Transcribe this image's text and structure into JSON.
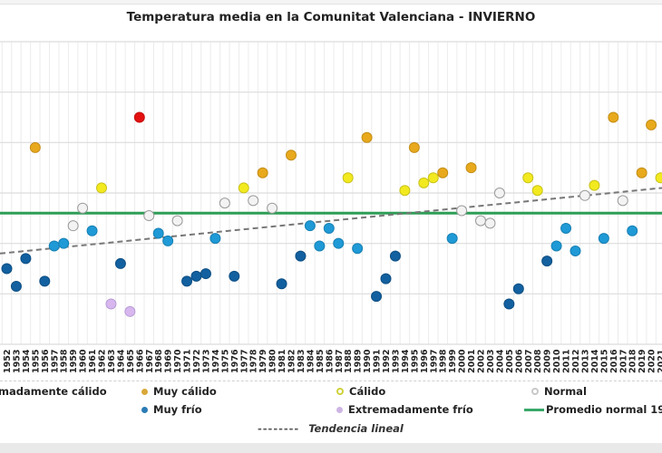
{
  "chart_data": {
    "type": "scatter",
    "title": "Temperatura media en la Comunitat Valenciana - INVIERNO",
    "xlabel": "",
    "ylabel": "",
    "y_tick_labels_visible": false,
    "ylim": [
      7.0,
      13.0
    ],
    "grid": true,
    "legend_position": "bottom",
    "categories_colors": {
      "extremadamente_calido": "#e3100f",
      "muy_calido": "#e8a91c",
      "calido": "#f2ea1f",
      "normal": "#f3f3f3",
      "muy_frio": "#1f9ad6",
      "muy_frio_dark": "#12609f",
      "extremadamente_frio": "#d7b7ee"
    },
    "average_line": {
      "label": "Promedio normal 19",
      "value": 9.6,
      "color": "#2e9e57"
    },
    "trend": {
      "label": "Tendencia lineal",
      "start": 8.8,
      "end": 10.1,
      "color": "#777777"
    },
    "points": [
      {
        "year": "1952",
        "value": 8.5,
        "cat": "muy_frio_dark"
      },
      {
        "year": "1953",
        "value": 8.15,
        "cat": "muy_frio_dark"
      },
      {
        "year": "1954",
        "value": 8.7,
        "cat": "muy_frio_dark"
      },
      {
        "year": "1955",
        "value": 10.9,
        "cat": "muy_calido"
      },
      {
        "year": "1956",
        "value": 8.25,
        "cat": "muy_frio_dark"
      },
      {
        "year": "1957",
        "value": 8.95,
        "cat": "muy_frio"
      },
      {
        "year": "1958",
        "value": 9.0,
        "cat": "muy_frio"
      },
      {
        "year": "1959",
        "value": 9.35,
        "cat": "normal"
      },
      {
        "year": "1960",
        "value": 9.7,
        "cat": "normal"
      },
      {
        "year": "1961",
        "value": 9.25,
        "cat": "muy_frio"
      },
      {
        "year": "1962",
        "value": 10.1,
        "cat": "calido"
      },
      {
        "year": "1963",
        "value": 7.8,
        "cat": "extremadamente_frio"
      },
      {
        "year": "1964",
        "value": 8.6,
        "cat": "muy_frio_dark"
      },
      {
        "year": "1965",
        "value": 7.65,
        "cat": "extremadamente_frio"
      },
      {
        "year": "1966",
        "value": 11.5,
        "cat": "extremadamente_calido"
      },
      {
        "year": "1967",
        "value": 9.55,
        "cat": "normal"
      },
      {
        "year": "1968",
        "value": 9.2,
        "cat": "muy_frio"
      },
      {
        "year": "1969",
        "value": 9.05,
        "cat": "muy_frio"
      },
      {
        "year": "1970",
        "value": 9.45,
        "cat": "normal"
      },
      {
        "year": "1971",
        "value": 8.25,
        "cat": "muy_frio_dark"
      },
      {
        "year": "1972",
        "value": 8.35,
        "cat": "muy_frio_dark"
      },
      {
        "year": "1973",
        "value": 8.4,
        "cat": "muy_frio_dark"
      },
      {
        "year": "1974",
        "value": 9.1,
        "cat": "muy_frio"
      },
      {
        "year": "1975",
        "value": 9.8,
        "cat": "normal"
      },
      {
        "year": "1976",
        "value": 8.35,
        "cat": "muy_frio_dark"
      },
      {
        "year": "1977",
        "value": 10.1,
        "cat": "calido"
      },
      {
        "year": "1978",
        "value": 9.85,
        "cat": "normal"
      },
      {
        "year": "1979",
        "value": 10.4,
        "cat": "muy_calido"
      },
      {
        "year": "1980",
        "value": 9.7,
        "cat": "normal"
      },
      {
        "year": "1981",
        "value": 8.2,
        "cat": "muy_frio_dark"
      },
      {
        "year": "1982",
        "value": 10.75,
        "cat": "muy_calido"
      },
      {
        "year": "1983",
        "value": 8.75,
        "cat": "muy_frio_dark"
      },
      {
        "year": "1984",
        "value": 9.35,
        "cat": "muy_frio"
      },
      {
        "year": "1985",
        "value": 8.95,
        "cat": "muy_frio"
      },
      {
        "year": "1986",
        "value": 9.3,
        "cat": "muy_frio"
      },
      {
        "year": "1987",
        "value": 9.0,
        "cat": "muy_frio"
      },
      {
        "year": "1988",
        "value": 10.3,
        "cat": "calido"
      },
      {
        "year": "1989",
        "value": 8.9,
        "cat": "muy_frio"
      },
      {
        "year": "1990",
        "value": 11.1,
        "cat": "muy_calido"
      },
      {
        "year": "1991",
        "value": 7.95,
        "cat": "muy_frio_dark"
      },
      {
        "year": "1992",
        "value": 8.3,
        "cat": "muy_frio_dark"
      },
      {
        "year": "1993",
        "value": 8.75,
        "cat": "muy_frio_dark"
      },
      {
        "year": "1994",
        "value": 10.05,
        "cat": "calido"
      },
      {
        "year": "1995",
        "value": 10.9,
        "cat": "muy_calido"
      },
      {
        "year": "1996",
        "value": 10.2,
        "cat": "calido"
      },
      {
        "year": "1997",
        "value": 10.3,
        "cat": "calido"
      },
      {
        "year": "1998",
        "value": 10.4,
        "cat": "muy_calido"
      },
      {
        "year": "1999",
        "value": 9.1,
        "cat": "muy_frio"
      },
      {
        "year": "2000",
        "value": 9.65,
        "cat": "normal"
      },
      {
        "year": "2001",
        "value": 10.5,
        "cat": "muy_calido"
      },
      {
        "year": "2002",
        "value": 9.45,
        "cat": "normal"
      },
      {
        "year": "2003",
        "value": 9.4,
        "cat": "normal"
      },
      {
        "year": "2004",
        "value": 10.0,
        "cat": "normal"
      },
      {
        "year": "2005",
        "value": 7.8,
        "cat": "muy_frio_dark"
      },
      {
        "year": "2006",
        "value": 8.1,
        "cat": "muy_frio_dark"
      },
      {
        "year": "2007",
        "value": 10.3,
        "cat": "calido"
      },
      {
        "year": "2008",
        "value": 10.05,
        "cat": "calido"
      },
      {
        "year": "2009",
        "value": 8.65,
        "cat": "muy_frio_dark"
      },
      {
        "year": "2010",
        "value": 8.95,
        "cat": "muy_frio"
      },
      {
        "year": "2011",
        "value": 9.3,
        "cat": "muy_frio"
      },
      {
        "year": "2012",
        "value": 8.85,
        "cat": "muy_frio"
      },
      {
        "year": "2013",
        "value": 9.95,
        "cat": "normal"
      },
      {
        "year": "2014",
        "value": 10.15,
        "cat": "calido"
      },
      {
        "year": "2015",
        "value": 9.1,
        "cat": "muy_frio"
      },
      {
        "year": "2016",
        "value": 11.5,
        "cat": "muy_calido"
      },
      {
        "year": "2017",
        "value": 9.85,
        "cat": "normal"
      },
      {
        "year": "2018",
        "value": 9.25,
        "cat": "muy_frio"
      },
      {
        "year": "2019",
        "value": 10.4,
        "cat": "muy_calido"
      },
      {
        "year": "2020",
        "value": 11.35,
        "cat": "muy_calido"
      },
      {
        "year": "2021",
        "value": 10.3,
        "cat": "calido"
      }
    ]
  },
  "legend": {
    "extremadamente_calido": "madamente cálido",
    "muy_calido": "Muy cálido",
    "calido": "Cálido",
    "normal": "Normal",
    "muy_frio": "Muy frío",
    "extremadamente_frio": "Extremadamente frío",
    "promedio": "Promedio normal 19",
    "trend_dash": "--------",
    "trend": "Tendencia lineal"
  }
}
